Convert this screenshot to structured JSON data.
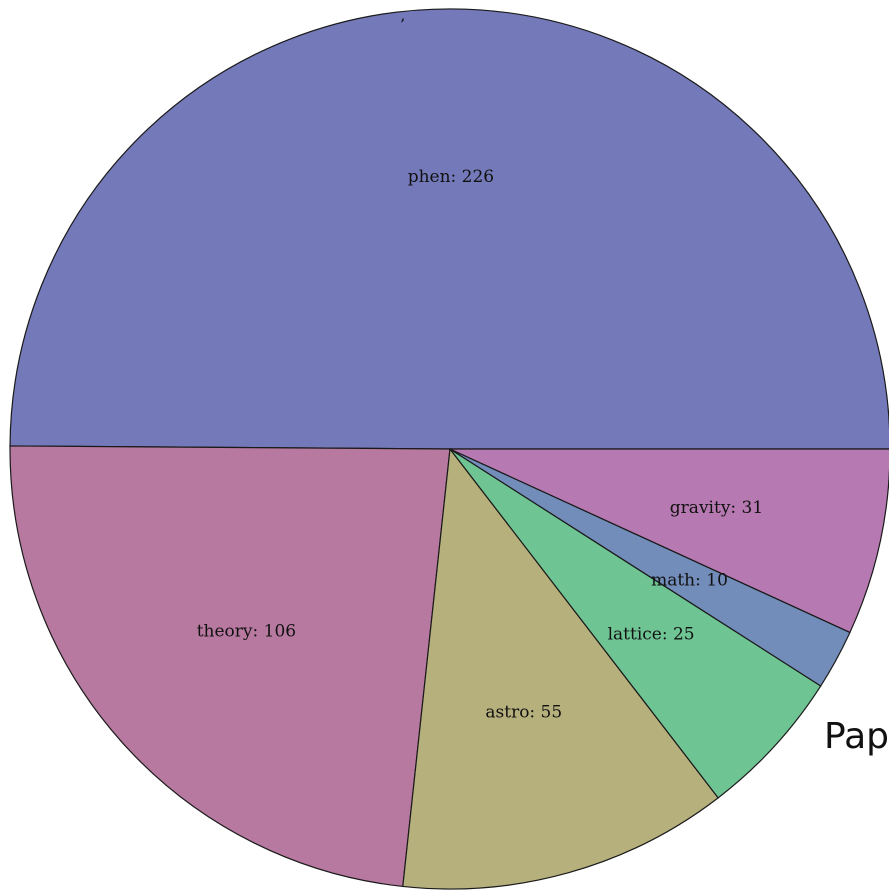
{
  "chart_data": {
    "type": "pie",
    "start_angle_deg": 0,
    "direction": "counterclockwise",
    "slices": [
      {
        "name": "phen",
        "value": 226,
        "label": "phen: 226",
        "color": "#7479b9"
      },
      {
        "name": "theory",
        "value": 106,
        "label": "theory: 106",
        "color": "#b879a0"
      },
      {
        "name": "astro",
        "value": 55,
        "label": "astro: 55",
        "color": "#b6b07d"
      },
      {
        "name": "lattice",
        "value": 25,
        "label": "lattice: 25",
        "color": "#6fc494"
      },
      {
        "name": "math",
        "value": 10,
        "label": "math: 10",
        "color": "#738dbb"
      },
      {
        "name": "gravity",
        "value": 31,
        "label": "gravity: 31",
        "color": "#b679b1"
      }
    ]
  },
  "stray_mark": "’",
  "side_text": "Pap"
}
